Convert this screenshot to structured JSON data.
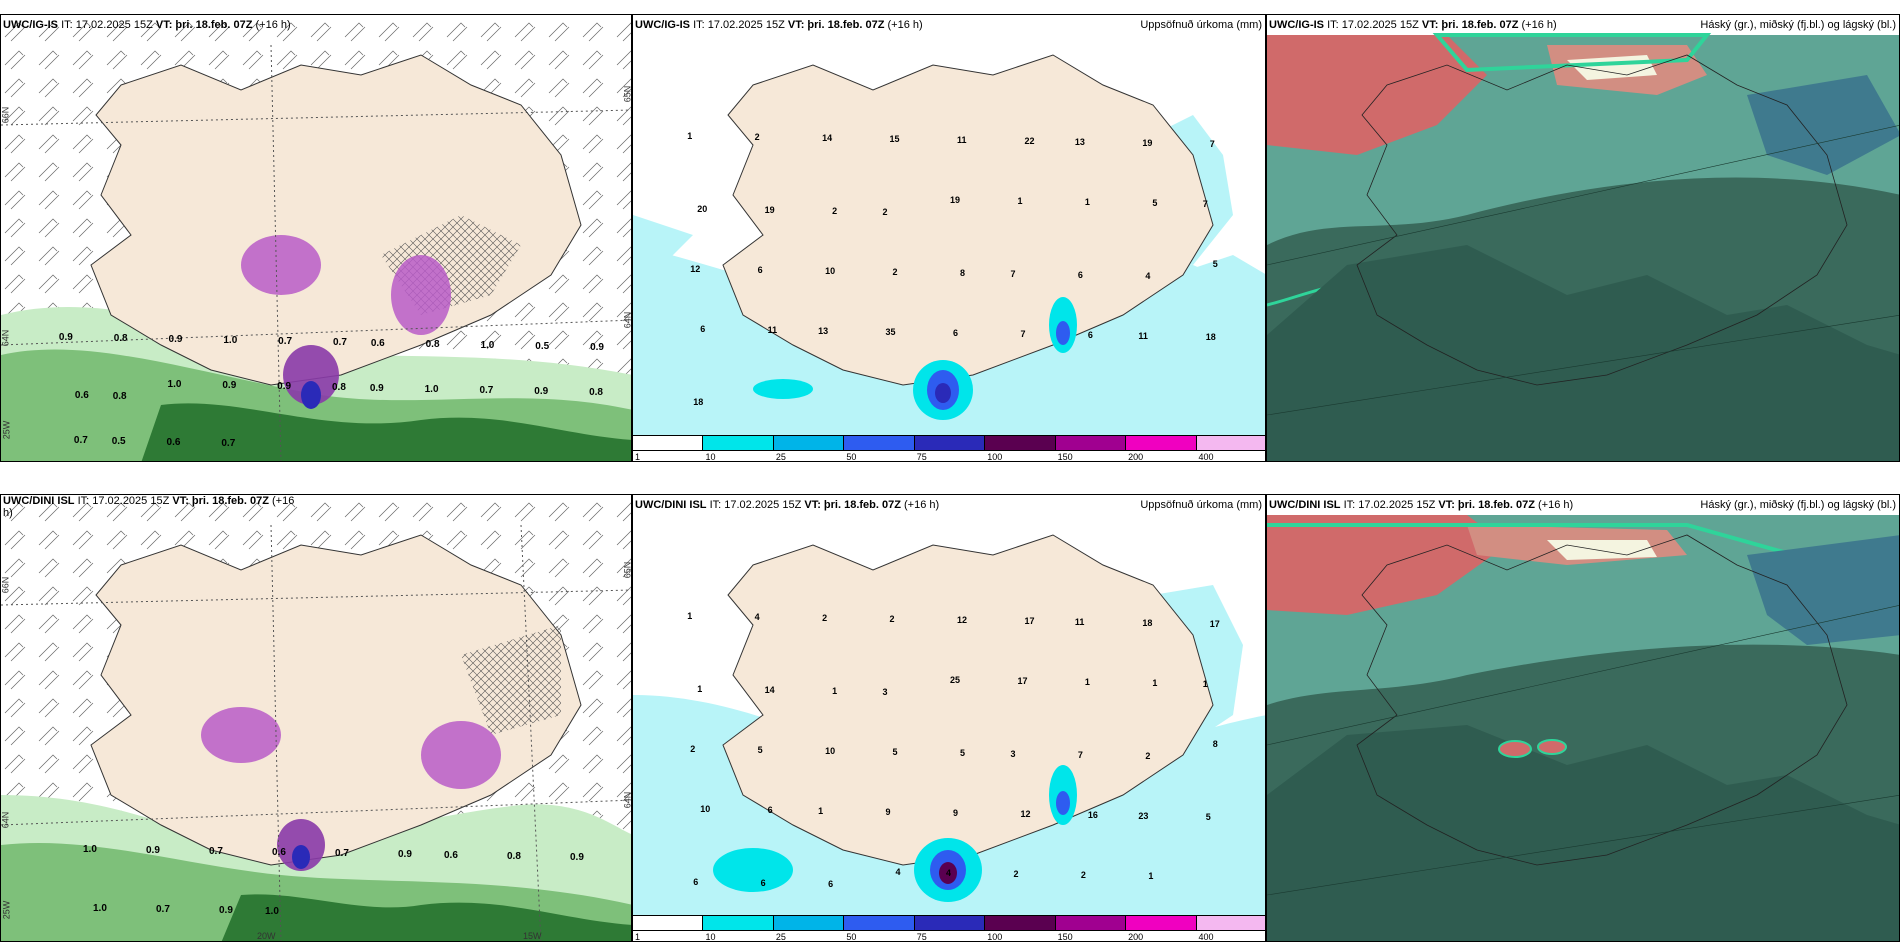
{
  "panels": {
    "p1": {
      "model": "UWC/IG-IS",
      "it": "IT: 17.02.2025 15Z",
      "vt_label": "VT:",
      "vt": "þri. 18.feb. 07Z",
      "lead": "(+16 h)",
      "right": ""
    },
    "p2": {
      "model": "UWC/IG-IS",
      "it": "IT: 17.02.2025 15Z",
      "vt_label": "VT:",
      "vt": "þri. 18.feb. 07Z",
      "lead": "(+16 h)",
      "right": "Uppsöfnuð úrkoma (mm)"
    },
    "p3": {
      "model": "UWC/IG-IS",
      "it": "IT: 17.02.2025 15Z",
      "vt_label": "VT:",
      "vt": "þri. 18.feb. 07Z",
      "lead": "(+16 h)",
      "right": "Háský (gr.), miðský (fj.bl.) og lágský (bl.)"
    },
    "p4": {
      "model": "UWC/DINI ISL",
      "it": "IT: 17.02.2025 15Z",
      "vt_label": "VT:",
      "vt": "þri. 18.feb. 07Z",
      "lead": "(+16",
      "lead2": "h)",
      "right": ""
    },
    "p5": {
      "model": "UWC/DINI ISL",
      "it": "IT: 17.02.2025 15Z",
      "vt_label": "VT:",
      "vt": "þri. 18.feb. 07Z",
      "lead": "(+16 h)",
      "right": "Uppsöfnuð úrkoma (mm)"
    },
    "p6": {
      "model": "UWC/DINI ISL",
      "it": "IT: 17.02.2025 15Z",
      "vt_label": "VT:",
      "vt": "þri. 18.feb. 07Z",
      "lead": "(+16 h)",
      "right": "Háský (gr.), miðský (fj.bl.) og lágský (bl.)"
    }
  },
  "colorbar": {
    "labels": [
      "1",
      "10",
      "25",
      "50",
      "75",
      "100",
      "150",
      "200",
      "400"
    ],
    "colors": [
      "#ffffff",
      "#00e5ea",
      "#00b4e8",
      "#2e5cf0",
      "#2a2ab8",
      "#5a0050",
      "#a00090",
      "#f000c0",
      "#f4b8f0"
    ]
  },
  "grid_labels": {
    "p1_left": [
      "66N",
      "64N",
      "25W"
    ],
    "p1_right": [
      "65N",
      "64N"
    ],
    "p4_left": [
      "66N",
      "64N",
      "25W"
    ],
    "p4_right": [
      "65N",
      "64N"
    ],
    "p4_bottom": [
      "20W",
      "15W"
    ]
  },
  "precip_values": {
    "p2": [
      "1",
      "2",
      "14",
      "15",
      "11",
      "22",
      "13",
      "19",
      "7",
      "20",
      "19",
      "2",
      "2",
      "19",
      "1",
      "1",
      "5",
      "7",
      "12",
      "6",
      "10",
      "2",
      "8",
      "7",
      "6",
      "4",
      "5",
      "6",
      "11",
      "13",
      "35",
      "6",
      "7",
      "6",
      "11",
      "18",
      "18"
    ],
    "p5": [
      "1",
      "4",
      "2",
      "2",
      "12",
      "17",
      "11",
      "18",
      "17",
      "1",
      "14",
      "1",
      "3",
      "25",
      "17",
      "1",
      "1",
      "1",
      "2",
      "5",
      "10",
      "5",
      "5",
      "3",
      "7",
      "2",
      "8",
      "10",
      "6",
      "1",
      "9",
      "9",
      "12",
      "16",
      "23",
      "5",
      "6",
      "6",
      "6",
      "4",
      "4",
      "2",
      "2",
      "1"
    ]
  },
  "gust_values": {
    "p1": [
      "0.9",
      "0.8",
      "0.9",
      "1.0",
      "0.7",
      "0.7",
      "0.6",
      "0.8",
      "1.0",
      "0.5",
      "0.9",
      "0.6",
      "0.8",
      "1.0",
      "0.9",
      "0.9",
      "0.8",
      "0.9",
      "1.0",
      "0.7",
      "0.9",
      "0.8",
      "0.7",
      "0.5",
      "0.6",
      "0.7"
    ],
    "p4": [
      "1.0",
      "0.9",
      "0.7",
      "0.6",
      "0.7",
      "0.9",
      "0.6",
      "0.8",
      "0.9",
      "1.0",
      "0.7",
      "0.9",
      "1.0"
    ]
  },
  "colors": {
    "land": "#f6e8d8",
    "sea": "#ffffff",
    "precip_light": "#b8f4f8",
    "precip_mid": "#00e5ea",
    "cloud_base": "#3a6a5c"
  }
}
